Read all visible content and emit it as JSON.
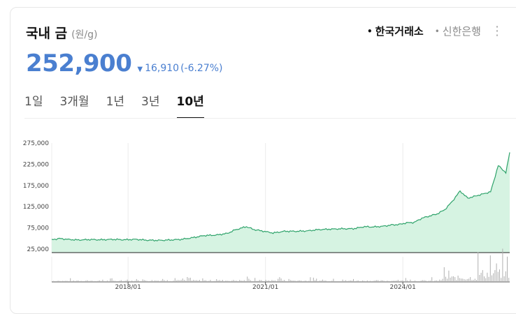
{
  "header": {
    "title": "국내 금",
    "unit": "(원/g)",
    "sources": [
      {
        "label": "한국거래소",
        "active": true
      },
      {
        "label": "신한은행",
        "active": false
      }
    ],
    "more_icon": "vertical-ellipsis-icon"
  },
  "price": {
    "value": "252,900",
    "change": "16,910",
    "rate": "(-6.27%)",
    "direction_icon": "triangle-down-icon",
    "color": "#4a7fd0"
  },
  "tabs": [
    {
      "label": "1일",
      "active": false
    },
    {
      "label": "3개월",
      "active": false
    },
    {
      "label": "1년",
      "active": false
    },
    {
      "label": "3년",
      "active": false
    },
    {
      "label": "10년",
      "active": true
    }
  ],
  "chart_data": {
    "type": "area",
    "title": "",
    "xlabel": "",
    "ylabel": "",
    "y_ticks": [
      "275,000",
      "225,000",
      "175,000",
      "125,000",
      "75,000",
      "25,000"
    ],
    "x_ticks": [
      "2018/01",
      "2021/01",
      "2024/01"
    ],
    "ylim": [
      25000,
      275000
    ],
    "xlim": [
      "2016/05",
      "2026/05"
    ],
    "grid": "vertical",
    "line_color": "#2fa36b",
    "fill_color": "#d6f3e2",
    "series": [
      {
        "x": [
          "2016/05",
          "2016/07",
          "2016/09",
          "2016/12",
          "2017/03",
          "2017/06",
          "2017/09",
          "2017/12",
          "2018/03",
          "2018/06",
          "2018/09",
          "2018/12",
          "2019/03",
          "2019/06",
          "2019/09",
          "2019/12",
          "2020/03",
          "2020/05",
          "2020/08",
          "2020/10",
          "2020/12",
          "2021/03",
          "2021/06",
          "2021/09",
          "2021/12",
          "2022/03",
          "2022/06",
          "2022/09",
          "2022/12",
          "2023/03",
          "2023/05",
          "2023/08",
          "2023/10",
          "2023/12",
          "2024/02",
          "2024/04",
          "2024/06",
          "2024/08",
          "2024/10",
          "2024/12",
          "2025/02",
          "2025/04",
          "2025/06",
          "2025/08",
          "2025/10",
          "2025/12",
          "2026/02",
          "2026/04",
          "2026/05"
        ],
        "values": [
          47000,
          50000,
          48000,
          46500,
          47500,
          47000,
          48000,
          47000,
          48000,
          46000,
          45500,
          46500,
          48000,
          52000,
          57000,
          58000,
          62000,
          70000,
          78000,
          71000,
          68000,
          63000,
          67000,
          67000,
          68000,
          71000,
          72000,
          73000,
          73000,
          78000,
          77000,
          79000,
          82000,
          83000,
          87000,
          88000,
          98000,
          103000,
          108000,
          118000,
          138000,
          162000,
          145000,
          150000,
          155000,
          160000,
          222000,
          205000,
          252900
        ]
      }
    ],
    "volume_note": "trading-volume-bars"
  }
}
